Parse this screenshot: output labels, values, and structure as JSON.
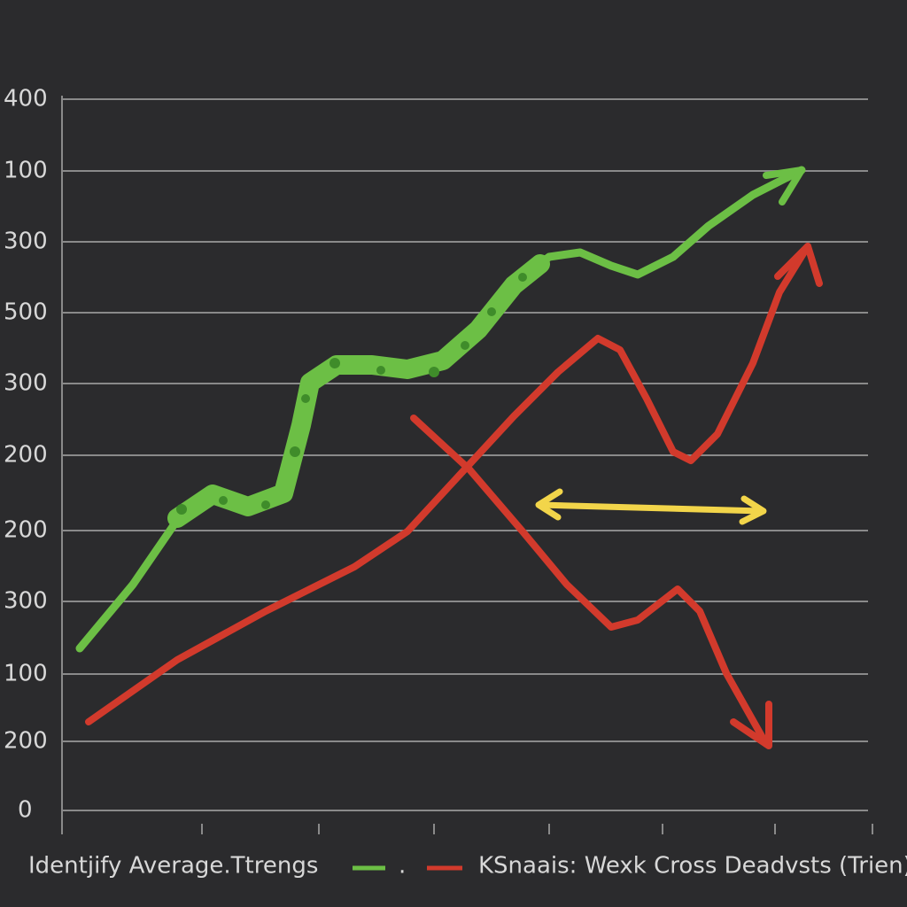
{
  "y_axis_labels": [
    "400",
    "100",
    "300",
    "500",
    "300",
    "200",
    "200",
    "300",
    "100",
    "200",
    "0"
  ],
  "legend": {
    "first": "Identjify Average.Ttrengs",
    "separator": ".",
    "second": "KSnaais: Wexk Cross Deadvsts (Trien)"
  }
}
